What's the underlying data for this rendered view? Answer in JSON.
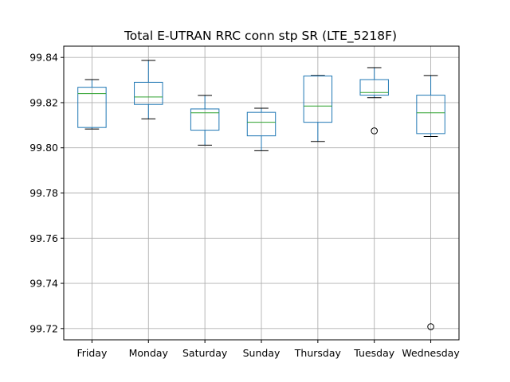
{
  "chart_data": {
    "type": "box",
    "title": "Total E-UTRAN RRC conn stp SR (LTE_5218F)",
    "xlabel": "",
    "ylabel": "",
    "categories": [
      "Friday",
      "Monday",
      "Saturday",
      "Sunday",
      "Thursday",
      "Tuesday",
      "Wednesday"
    ],
    "y_ticks": [
      "99.72",
      "99.74",
      "99.76",
      "99.78",
      "99.80",
      "99.82",
      "99.84"
    ],
    "ylim": [
      99.715,
      99.845
    ],
    "grid": true,
    "boxes": [
      {
        "category": "Friday",
        "whislo": 99.8083,
        "q1": 99.809,
        "med": 99.824,
        "q3": 99.8268,
        "whishi": 99.8302,
        "fliers": []
      },
      {
        "category": "Monday",
        "whislo": 99.8128,
        "q1": 99.8192,
        "med": 99.8225,
        "q3": 99.829,
        "whishi": 99.8387,
        "fliers": []
      },
      {
        "category": "Saturday",
        "whislo": 99.8012,
        "q1": 99.8078,
        "med": 99.8155,
        "q3": 99.8172,
        "whishi": 99.8232,
        "fliers": []
      },
      {
        "category": "Sunday",
        "whislo": 99.7987,
        "q1": 99.8053,
        "med": 99.8113,
        "q3": 99.8157,
        "whishi": 99.8175,
        "fliers": []
      },
      {
        "category": "Thursday",
        "whislo": 99.8028,
        "q1": 99.8113,
        "med": 99.8185,
        "q3": 99.8318,
        "whishi": 99.832,
        "fliers": []
      },
      {
        "category": "Tuesday",
        "whislo": 99.8222,
        "q1": 99.8233,
        "med": 99.8245,
        "q3": 99.8302,
        "whishi": 99.8355,
        "fliers": [
          99.8075
        ]
      },
      {
        "category": "Wednesday",
        "whislo": 99.805,
        "q1": 99.8063,
        "med": 99.8155,
        "q3": 99.8233,
        "whishi": 99.832,
        "fliers": [
          99.7208
        ]
      }
    ],
    "colors": {
      "box": "#1f77b4",
      "median": "#2ca02c",
      "whisker": "#1f77b4",
      "cap": "#000000",
      "flier": "#000000"
    }
  }
}
